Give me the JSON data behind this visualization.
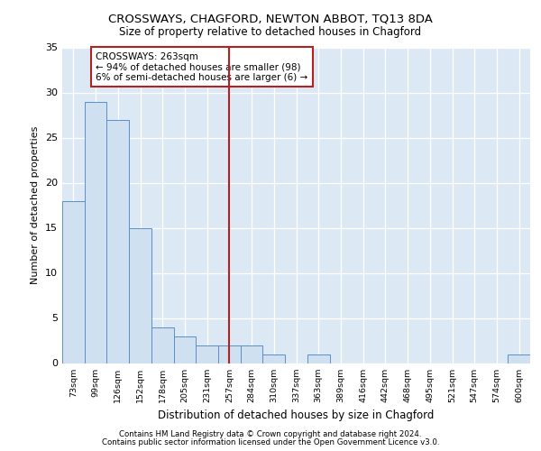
{
  "title1": "CROSSWAYS, CHAGFORD, NEWTON ABBOT, TQ13 8DA",
  "title2": "Size of property relative to detached houses in Chagford",
  "xlabel": "Distribution of detached houses by size in Chagford",
  "ylabel": "Number of detached properties",
  "categories": [
    "73sqm",
    "99sqm",
    "126sqm",
    "152sqm",
    "178sqm",
    "205sqm",
    "231sqm",
    "257sqm",
    "284sqm",
    "310sqm",
    "337sqm",
    "363sqm",
    "389sqm",
    "416sqm",
    "442sqm",
    "468sqm",
    "495sqm",
    "521sqm",
    "547sqm",
    "574sqm",
    "600sqm"
  ],
  "values": [
    18,
    29,
    27,
    15,
    4,
    3,
    2,
    2,
    2,
    1,
    0,
    1,
    0,
    0,
    0,
    0,
    0,
    0,
    0,
    0,
    1
  ],
  "bar_color": "#cfe0f0",
  "bar_edge_color": "#5b8fc9",
  "vline_x_index": 7,
  "vline_color": "#b22222",
  "annotation_line1": "CROSSWAYS: 263sqm",
  "annotation_line2": "← 94% of detached houses are smaller (98)",
  "annotation_line3": "6% of semi-detached houses are larger (6) →",
  "annotation_box_edgecolor": "#b22222",
  "ylim": [
    0,
    35
  ],
  "yticks": [
    0,
    5,
    10,
    15,
    20,
    25,
    30,
    35
  ],
  "plot_bg_color": "#dce9f5",
  "footer1": "Contains HM Land Registry data © Crown copyright and database right 2024.",
  "footer2": "Contains public sector information licensed under the Open Government Licence v3.0."
}
